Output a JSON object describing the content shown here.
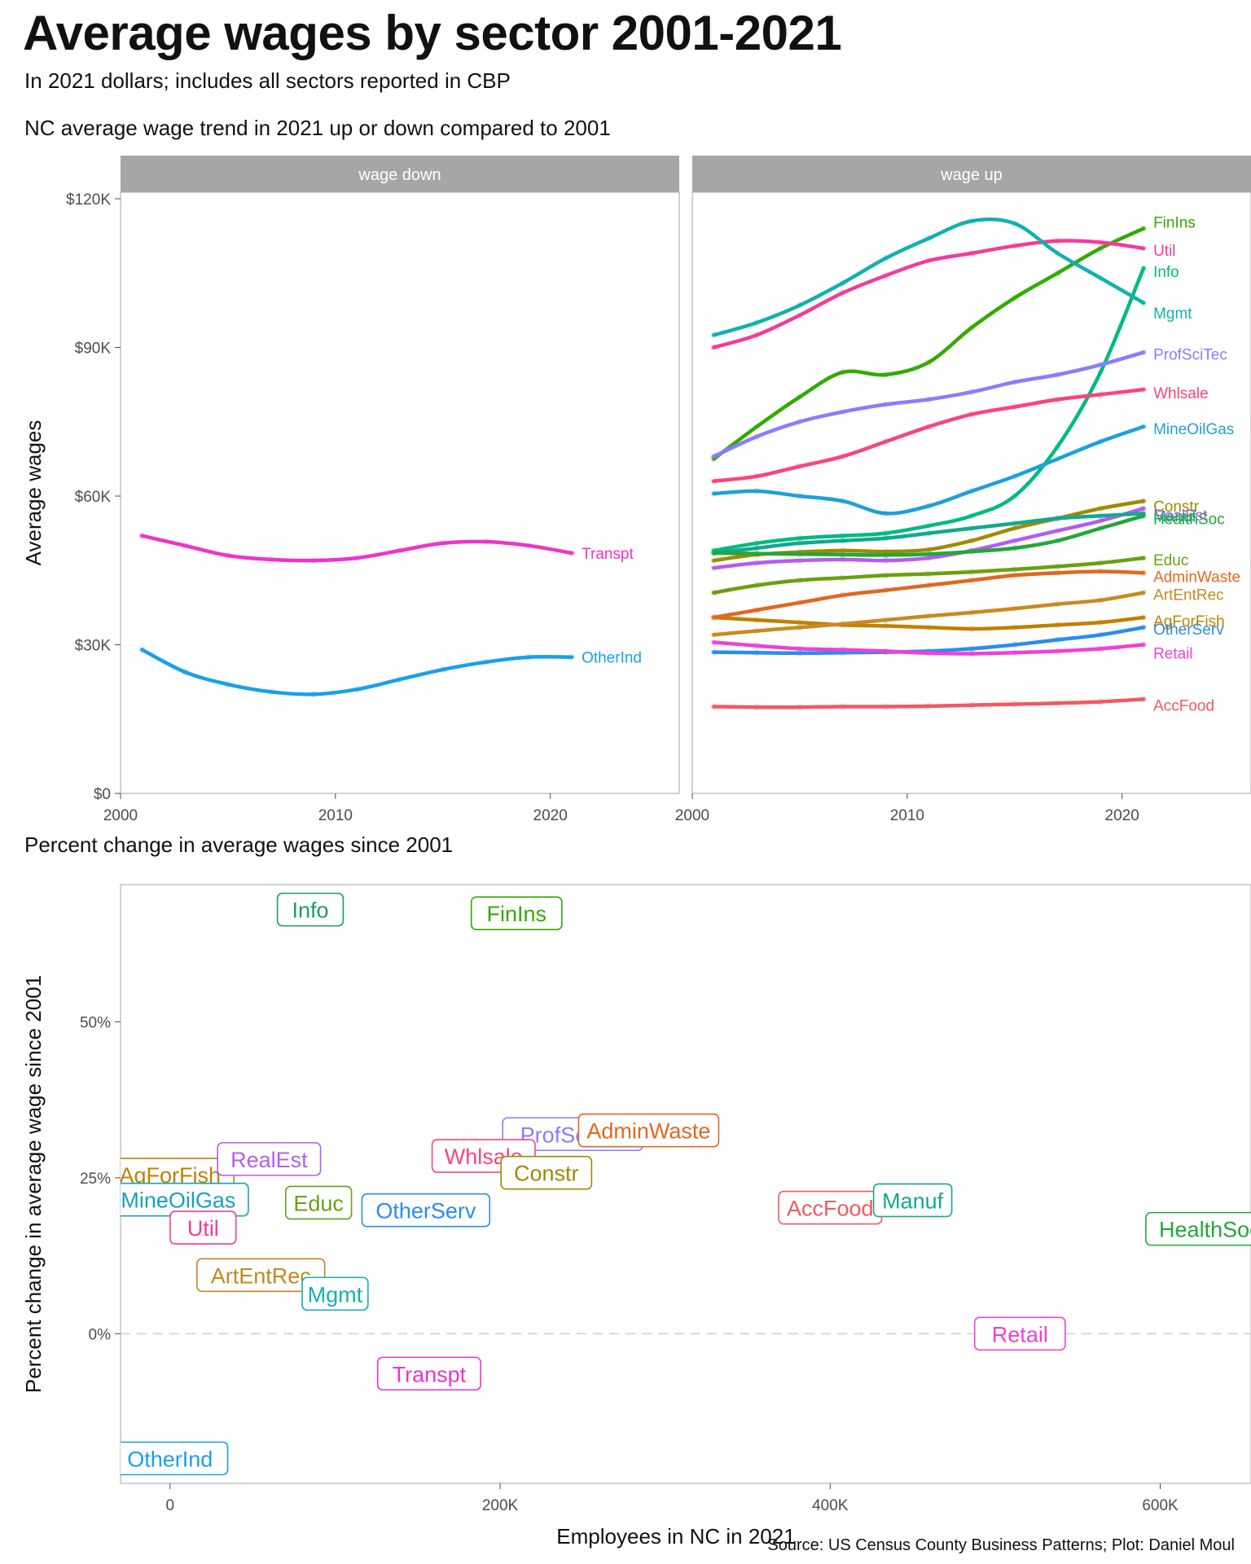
{
  "title": "Average wages by sector 2001-2021",
  "subtitle": "In 2021 dollars; includes all sectors reported in CBP",
  "panel_title": "NC average wage trend in 2021 up or down compared to 2001",
  "scatter_title": "Percent change in average wages since 2001",
  "caption": "Source: US Census County Business Patterns; Plot: Daniel Moul",
  "chart_data": [
    {
      "type": "line",
      "facet": "wage down",
      "xlabel": "",
      "ylabel": "Average wages",
      "xlim": [
        2000,
        2026
      ],
      "ylim": [
        0,
        120000
      ],
      "x_ticks": [
        "2000",
        "2010",
        "2020"
      ],
      "y_ticks": [
        "$0",
        "$30K",
        "$60K",
        "$90K",
        "$120K"
      ],
      "grid": false,
      "legend": "end labels",
      "x": [
        2001,
        2003,
        2005,
        2007,
        2009,
        2011,
        2013,
        2015,
        2017,
        2019,
        2021
      ],
      "series": [
        {
          "name": "Transpt",
          "color": "#ee33cc",
          "values": [
            52000,
            50000,
            48000,
            47200,
            47000,
            47500,
            49000,
            50500,
            50800,
            50000,
            48500
          ]
        },
        {
          "name": "OtherInd",
          "color": "#1aa0e8",
          "values": [
            29000,
            24500,
            22000,
            20500,
            20000,
            21000,
            23000,
            25000,
            26500,
            27500,
            27500
          ]
        }
      ]
    },
    {
      "type": "line",
      "facet": "wage up",
      "xlabel": "",
      "ylabel": "Average wages",
      "xlim": [
        2000,
        2026
      ],
      "ylim": [
        0,
        120000
      ],
      "x_ticks": [
        "2000",
        "2010",
        "2020"
      ],
      "y_ticks": [
        "$0",
        "$30K",
        "$60K",
        "$90K",
        "$120K"
      ],
      "grid": false,
      "legend": "end labels",
      "x": [
        2001,
        2003,
        2005,
        2007,
        2009,
        2011,
        2013,
        2015,
        2017,
        2019,
        2021
      ],
      "series": [
        {
          "name": "FinIns",
          "color": "#33aa00",
          "values": [
            67500,
            74000,
            80000,
            85000,
            84500,
            87000,
            94000,
            100000,
            105000,
            110000,
            114000
          ]
        },
        {
          "name": "Info",
          "color": "#00ba80",
          "values": [
            49000,
            50500,
            51500,
            52000,
            52500,
            54000,
            56000,
            60000,
            70000,
            85000,
            106000
          ]
        },
        {
          "name": "Util",
          "color": "#f23c9a",
          "values": [
            90000,
            92500,
            96500,
            101000,
            104500,
            107500,
            109000,
            110500,
            111500,
            111200,
            110000
          ]
        },
        {
          "name": "Mgmt",
          "color": "#12b0b0",
          "values": [
            92500,
            95000,
            98500,
            103000,
            108000,
            112000,
            115500,
            115000,
            109000,
            104000,
            99000
          ]
        },
        {
          "name": "ProfSciTec",
          "color": "#8a7cff",
          "values": [
            68000,
            72000,
            75000,
            77000,
            78500,
            79500,
            81000,
            83000,
            84500,
            86500,
            89000
          ]
        },
        {
          "name": "Whlsale",
          "color": "#f8457a",
          "values": [
            63000,
            64000,
            66000,
            68000,
            71000,
            74000,
            76500,
            78000,
            79500,
            80500,
            81500
          ]
        },
        {
          "name": "MineOilGas",
          "color": "#1ea0d8",
          "values": [
            60500,
            61000,
            60000,
            59000,
            56500,
            58000,
            61000,
            64000,
            67500,
            71000,
            74000
          ]
        },
        {
          "name": "Constr",
          "color": "#a08a00",
          "values": [
            47000,
            48200,
            48700,
            49000,
            48800,
            49200,
            51000,
            53500,
            55500,
            57500,
            59000
          ]
        },
        {
          "name": "RealEst",
          "color": "#b55cf0",
          "values": [
            45500,
            46500,
            47000,
            47200,
            47000,
            47500,
            49000,
            51000,
            53000,
            55000,
            57500
          ]
        },
        {
          "name": "Manuf",
          "color": "#13a890",
          "values": [
            48500,
            49500,
            50500,
            51000,
            51500,
            52500,
            53500,
            54500,
            55500,
            56000,
            56500
          ]
        },
        {
          "name": "HealthSoc",
          "color": "#21a838",
          "values": [
            48500,
            48400,
            48300,
            48200,
            48100,
            48300,
            48800,
            49500,
            51000,
            53500,
            56000
          ]
        },
        {
          "name": "Educ",
          "color": "#6aa010",
          "values": [
            40500,
            42000,
            43000,
            43500,
            44000,
            44300,
            44700,
            45200,
            45800,
            46500,
            47500
          ]
        },
        {
          "name": "AgForFish",
          "color": "#c08000",
          "values": [
            35500,
            35000,
            34500,
            34000,
            33800,
            33500,
            33200,
            33500,
            34000,
            34500,
            35500
          ]
        },
        {
          "name": "AdminWaste",
          "color": "#e06820",
          "values": [
            35500,
            37000,
            38500,
            40000,
            41000,
            42000,
            43000,
            44000,
            44500,
            44800,
            44500
          ]
        },
        {
          "name": "ArtEntRec",
          "color": "#c88a20",
          "values": [
            32000,
            32800,
            33500,
            34200,
            35000,
            35800,
            36500,
            37300,
            38200,
            39000,
            40500
          ]
        },
        {
          "name": "OtherServ",
          "color": "#2a8cf0",
          "values": [
            28500,
            28400,
            28300,
            28400,
            28500,
            28700,
            29200,
            30000,
            31000,
            32000,
            33500
          ]
        },
        {
          "name": "Retail",
          "color": "#f040d8",
          "values": [
            30500,
            29800,
            29200,
            29000,
            28700,
            28300,
            28200,
            28400,
            28700,
            29200,
            30000
          ]
        },
        {
          "name": "AccFood",
          "color": "#f05a60",
          "values": [
            17500,
            17400,
            17400,
            17500,
            17500,
            17600,
            17800,
            18000,
            18200,
            18500,
            19000
          ]
        }
      ]
    },
    {
      "type": "scatter",
      "xlabel": "Employees in NC in 2021",
      "ylabel": "Percent change in average wage since 2001",
      "xlim": [
        -30000,
        655000
      ],
      "ylim": [
        -0.24,
        0.72
      ],
      "x_ticks": [
        "0",
        "200K",
        "400K",
        "600K"
      ],
      "y_ticks": [
        "0%",
        "25%",
        "50%"
      ],
      "reference_line": 0,
      "grid": false,
      "points": [
        {
          "name": "Info",
          "color": "#1a9d66",
          "x": 85000,
          "y": 0.68
        },
        {
          "name": "FinIns",
          "color": "#33aa00",
          "x": 210000,
          "y": 0.674
        },
        {
          "name": "ProfSciTec",
          "color": "#8a7cff",
          "x": 244000,
          "y": 0.32
        },
        {
          "name": "AdminWaste",
          "color": "#e06820",
          "x": 290000,
          "y": 0.326
        },
        {
          "name": "Whlsale",
          "color": "#f8457a",
          "x": 190000,
          "y": 0.285
        },
        {
          "name": "Constr",
          "color": "#a08a00",
          "x": 228000,
          "y": 0.258
        },
        {
          "name": "AgForFish",
          "color": "#c08000",
          "x": 0,
          "y": 0.255
        },
        {
          "name": "RealEst",
          "color": "#b55cf0",
          "x": 60000,
          "y": 0.28
        },
        {
          "name": "MineOilGas",
          "color": "#1aa0c0",
          "x": 5000,
          "y": 0.215
        },
        {
          "name": "Educ",
          "color": "#6aa010",
          "x": 90000,
          "y": 0.21
        },
        {
          "name": "OtherServ",
          "color": "#2a8cf0",
          "x": 155000,
          "y": 0.198
        },
        {
          "name": "Util",
          "color": "#f23c9a",
          "x": 20000,
          "y": 0.17
        },
        {
          "name": "AccFood",
          "color": "#f05a60",
          "x": 400000,
          "y": 0.202
        },
        {
          "name": "Manuf",
          "color": "#13a890",
          "x": 450000,
          "y": 0.214
        },
        {
          "name": "HealthSoc",
          "color": "#21a838",
          "x": 630000,
          "y": 0.168
        },
        {
          "name": "ArtEntRec",
          "color": "#c08a20",
          "x": 55000,
          "y": 0.094
        },
        {
          "name": "Mgmt",
          "color": "#12b0b0",
          "x": 100000,
          "y": 0.064
        },
        {
          "name": "Retail",
          "color": "#f040d8",
          "x": 515000,
          "y": 0.0
        },
        {
          "name": "Transpt",
          "color": "#ee33cc",
          "x": 157000,
          "y": -0.064
        },
        {
          "name": "OtherInd",
          "color": "#1aa0e8",
          "x": 0,
          "y": -0.2
        }
      ]
    }
  ]
}
